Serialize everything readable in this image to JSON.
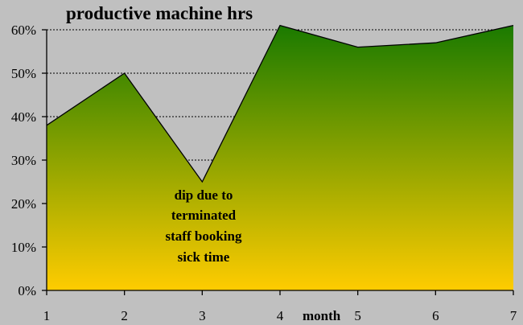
{
  "chart_data": {
    "type": "area",
    "title": "productive machine hrs",
    "xlabel": "month",
    "ylabel": "",
    "x": [
      1,
      2,
      3,
      4,
      5,
      6,
      7
    ],
    "series": [
      {
        "values": [
          38,
          50,
          25,
          61,
          56,
          57,
          61
        ]
      }
    ],
    "ylim": [
      0,
      65
    ],
    "yticks": [
      0,
      10,
      20,
      30,
      40,
      50,
      60
    ],
    "ytick_labels": [
      "0%",
      "10%",
      "20%",
      "30%",
      "40%",
      "50%",
      "60%"
    ],
    "xtick_labels": [
      "1",
      "2",
      "3",
      "4",
      "5",
      "6",
      "7"
    ],
    "grid": "horizontal dotted",
    "fill_gradient": {
      "top": "#1a7a00",
      "bottom": "#ffcc00"
    },
    "background": "#c0c0c0",
    "annotation": {
      "lines": [
        "dip due to",
        "terminated",
        "staff booking",
        "sick time"
      ]
    }
  }
}
